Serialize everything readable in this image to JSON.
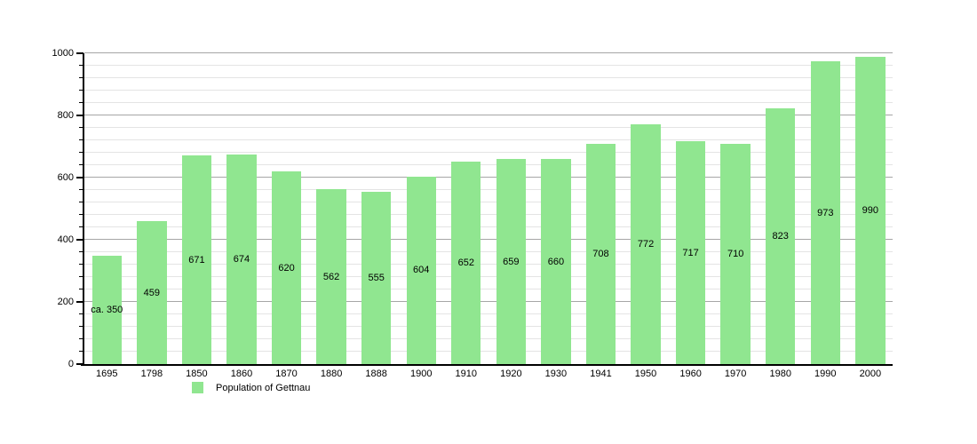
{
  "chart_data": {
    "type": "bar",
    "title": "",
    "xlabel": "",
    "ylabel": "",
    "categories": [
      "1695",
      "1798",
      "1850",
      "1860",
      "1870",
      "1880",
      "1888",
      "1900",
      "1910",
      "1920",
      "1930",
      "1941",
      "1950",
      "1960",
      "1970",
      "1980",
      "1990",
      "2000"
    ],
    "values": [
      350,
      459,
      671,
      674,
      620,
      562,
      555,
      604,
      652,
      659,
      660,
      708,
      772,
      717,
      710,
      823,
      973,
      990
    ],
    "bar_labels": [
      "ca. 350",
      "459",
      "671",
      "674",
      "620",
      "562",
      "555",
      "604",
      "652",
      "659",
      "660",
      "708",
      "772",
      "717",
      "710",
      "823",
      "973",
      "990"
    ],
    "series_name": "Population of Gettnau",
    "ylim": [
      0,
      1000
    ],
    "y_ticks": [
      0,
      200,
      400,
      600,
      800,
      1000
    ],
    "y_major_step": 200,
    "y_minor_step": 40,
    "grid": "horizontal, major and minor lines",
    "legend_position": "bottom-left",
    "bar_color": "#90e690"
  },
  "legend": {
    "label": "Population of Gettnau",
    "swatch_color": "#90e690"
  },
  "colors": {
    "background": "#ffffff",
    "bar": "#90e690",
    "axis": "#000000",
    "grid_major": "#a6a6a6",
    "grid_minor": "#e4e4e4",
    "text": "#000000"
  }
}
